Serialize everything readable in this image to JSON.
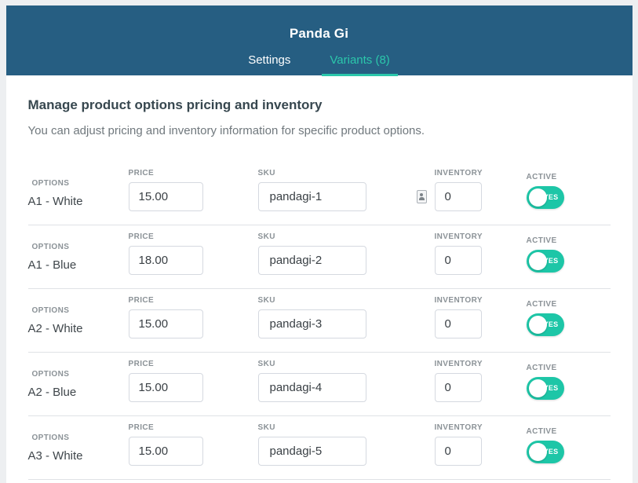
{
  "header": {
    "title": "Panda Gi",
    "tabs": [
      {
        "label": "Settings",
        "active": false
      },
      {
        "label": "Variants (8)",
        "active": true
      }
    ]
  },
  "main": {
    "heading": "Manage product options pricing and inventory",
    "subheading": "You can adjust pricing and inventory information for specific product options.",
    "columns": {
      "options": "OPTIONS",
      "price": "PRICE",
      "sku": "SKU",
      "inventory": "INVENTORY",
      "active": "ACTIVE"
    },
    "rows": [
      {
        "option": "A1 - White",
        "price": "15.00",
        "sku": "pandagi-1",
        "inventory": "0",
        "active_label": "YES",
        "active": true,
        "has_autofill_icon": true
      },
      {
        "option": "A1 - Blue",
        "price": "18.00",
        "sku": "pandagi-2",
        "inventory": "0",
        "active_label": "YES",
        "active": true,
        "has_autofill_icon": false
      },
      {
        "option": "A2 - White",
        "price": "15.00",
        "sku": "pandagi-3",
        "inventory": "0",
        "active_label": "YES",
        "active": true,
        "has_autofill_icon": false
      },
      {
        "option": "A2 - Blue",
        "price": "15.00",
        "sku": "pandagi-4",
        "inventory": "0",
        "active_label": "YES",
        "active": true,
        "has_autofill_icon": false
      },
      {
        "option": "A3 - White",
        "price": "15.00",
        "sku": "pandagi-5",
        "inventory": "0",
        "active_label": "YES",
        "active": true,
        "has_autofill_icon": false
      }
    ]
  },
  "colors": {
    "header_bg": "#265e82",
    "accent_teal": "#2bc7ab",
    "toggle_bg": "#1dc6a7"
  }
}
